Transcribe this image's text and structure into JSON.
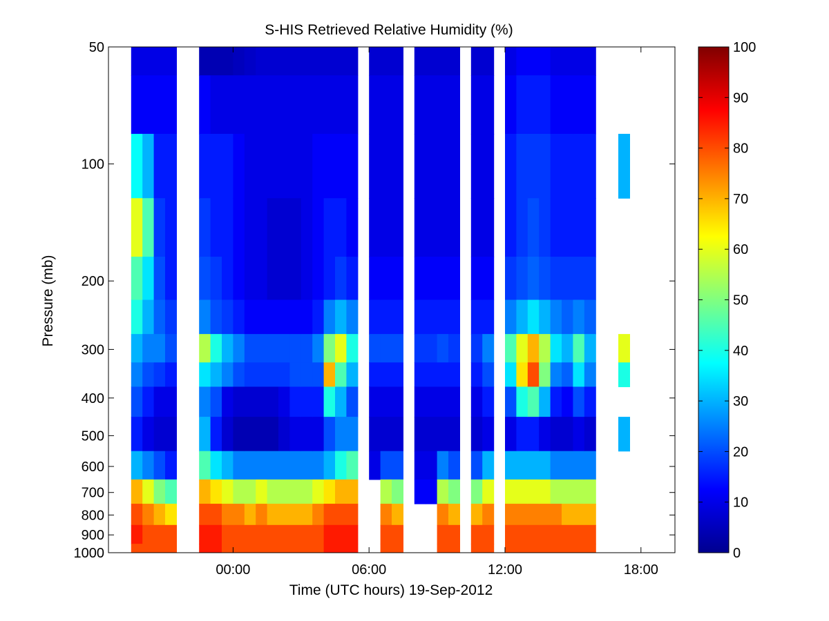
{
  "chart_data": {
    "type": "heatmap",
    "title": "S-HIS Retrieved Relative Humidity (%)",
    "xlabel": "Time (UTC hours) 19-Sep-2012",
    "ylabel": "Pressure (mb)",
    "y_scale": "log",
    "y_reversed": true,
    "ylim": [
      50,
      1000
    ],
    "y_ticks": [
      50,
      100,
      200,
      300,
      400,
      500,
      600,
      700,
      800,
      900,
      1000
    ],
    "y_tick_labels": [
      "50",
      "100",
      "200",
      "300",
      "400",
      "500",
      "600",
      "700",
      "800",
      "900",
      "1000"
    ],
    "xlim": [
      -5.5,
      19.5
    ],
    "x_ticks": [
      0,
      6,
      12,
      18
    ],
    "x_tick_labels": [
      "00:00",
      "06:00",
      "12:00",
      "18:00"
    ],
    "colorbar": {
      "min": 0,
      "max": 100,
      "ticks": [
        0,
        10,
        20,
        30,
        40,
        50,
        60,
        70,
        80,
        90,
        100
      ],
      "tick_labels": [
        "0",
        "10",
        "20",
        "30",
        "40",
        "50",
        "60",
        "70",
        "80",
        "90",
        "100"
      ],
      "colormap": "jet"
    },
    "time_columns": [
      -4.25,
      -3.75,
      -3.25,
      -2.75,
      -2.25,
      -1.75,
      -1.25,
      -0.75,
      -0.25,
      0.25,
      0.75,
      1.25,
      1.75,
      2.25,
      2.75,
      3.25,
      3.75,
      4.25,
      4.75,
      5.25,
      5.75,
      6.25,
      6.75,
      7.25,
      7.75,
      8.25,
      8.75,
      9.25,
      9.75,
      10.25,
      10.75,
      11.25,
      11.75,
      12.25,
      12.75,
      13.25,
      13.75,
      14.25,
      14.75,
      15.25,
      15.75,
      16.25,
      16.75,
      17.25
    ],
    "pressure_levels": [
      50,
      70,
      100,
      150,
      200,
      250,
      300,
      350,
      400,
      500,
      600,
      700,
      800,
      900,
      1000
    ],
    "missing_value": -1,
    "rh": [
      [
        10,
        12,
        38,
        60,
        45,
        40,
        30,
        25,
        20,
        15,
        30,
        70,
        80,
        85,
        80
      ],
      [
        10,
        12,
        30,
        45,
        35,
        30,
        25,
        20,
        15,
        10,
        25,
        60,
        75,
        80,
        80
      ],
      [
        10,
        12,
        15,
        18,
        20,
        22,
        25,
        18,
        10,
        8,
        20,
        50,
        70,
        80,
        80
      ],
      [
        10,
        12,
        15,
        15,
        15,
        18,
        20,
        15,
        10,
        8,
        15,
        45,
        65,
        80,
        80
      ],
      [
        -1,
        -1,
        -1,
        -1,
        -1,
        -1,
        -1,
        -1,
        -1,
        -1,
        -1,
        -1,
        -1,
        -1,
        -1
      ],
      [
        -1,
        -1,
        -1,
        -1,
        -1,
        -1,
        -1,
        -1,
        -1,
        -1,
        -1,
        -1,
        -1,
        -1,
        -1
      ],
      [
        5,
        12,
        15,
        18,
        20,
        25,
        55,
        35,
        25,
        30,
        45,
        70,
        80,
        85,
        85
      ],
      [
        5,
        10,
        15,
        15,
        18,
        20,
        40,
        30,
        20,
        15,
        35,
        65,
        80,
        85,
        85
      ],
      [
        5,
        10,
        15,
        15,
        15,
        18,
        30,
        25,
        10,
        8,
        30,
        60,
        75,
        80,
        80
      ],
      [
        6,
        10,
        12,
        12,
        12,
        15,
        25,
        20,
        8,
        5,
        25,
        55,
        75,
        80,
        80
      ],
      [
        7,
        10,
        10,
        10,
        10,
        12,
        20,
        18,
        8,
        5,
        25,
        55,
        70,
        80,
        80
      ],
      [
        8,
        10,
        10,
        10,
        10,
        12,
        20,
        18,
        8,
        5,
        25,
        60,
        75,
        80,
        80
      ],
      [
        8,
        10,
        10,
        8,
        8,
        12,
        20,
        18,
        8,
        5,
        25,
        55,
        70,
        80,
        80
      ],
      [
        8,
        10,
        10,
        8,
        8,
        12,
        20,
        18,
        10,
        8,
        25,
        55,
        70,
        80,
        80
      ],
      [
        8,
        10,
        10,
        8,
        8,
        12,
        20,
        20,
        15,
        10,
        25,
        55,
        70,
        80,
        80
      ],
      [
        8,
        10,
        10,
        10,
        10,
        12,
        20,
        20,
        15,
        10,
        25,
        55,
        70,
        80,
        80
      ],
      [
        8,
        10,
        12,
        12,
        12,
        15,
        25,
        20,
        15,
        10,
        25,
        60,
        75,
        80,
        80
      ],
      [
        8,
        10,
        12,
        15,
        15,
        25,
        50,
        70,
        40,
        20,
        30,
        65,
        80,
        85,
        85
      ],
      [
        8,
        10,
        12,
        15,
        18,
        30,
        60,
        45,
        30,
        25,
        40,
        70,
        80,
        85,
        85
      ],
      [
        8,
        10,
        12,
        12,
        15,
        25,
        40,
        30,
        20,
        25,
        45,
        70,
        80,
        85,
        85
      ],
      [
        -1,
        -1,
        -1,
        -1,
        -1,
        -1,
        -1,
        -1,
        -1,
        -1,
        -1,
        -1,
        -1,
        -1,
        -1
      ],
      [
        8,
        10,
        10,
        10,
        12,
        15,
        20,
        15,
        10,
        8,
        10,
        -1,
        -1,
        -1,
        -1
      ],
      [
        8,
        10,
        10,
        10,
        12,
        15,
        20,
        15,
        10,
        8,
        20,
        55,
        75,
        80,
        80
      ],
      [
        8,
        10,
        10,
        10,
        12,
        15,
        20,
        15,
        10,
        8,
        20,
        50,
        70,
        80,
        80
      ],
      [
        -1,
        -1,
        -1,
        -1,
        -1,
        -1,
        -1,
        -1,
        -1,
        -1,
        -1,
        -1,
        -1,
        -1,
        -1
      ],
      [
        8,
        10,
        10,
        10,
        12,
        15,
        18,
        15,
        10,
        8,
        10,
        12,
        -1,
        -1,
        -1
      ],
      [
        8,
        10,
        10,
        10,
        12,
        15,
        18,
        15,
        10,
        8,
        10,
        12,
        -1,
        -1,
        -1
      ],
      [
        8,
        10,
        10,
        10,
        12,
        15,
        20,
        15,
        10,
        8,
        25,
        55,
        75,
        80,
        80
      ],
      [
        8,
        10,
        10,
        10,
        12,
        15,
        18,
        15,
        10,
        8,
        20,
        50,
        70,
        80,
        80
      ],
      [
        -1,
        -1,
        -1,
        -1,
        -1,
        -1,
        -1,
        -1,
        -1,
        -1,
        -1,
        -1,
        -1,
        -1,
        -1
      ],
      [
        8,
        10,
        10,
        10,
        12,
        15,
        18,
        15,
        10,
        8,
        20,
        50,
        70,
        80,
        80
      ],
      [
        8,
        10,
        10,
        10,
        12,
        15,
        25,
        20,
        15,
        10,
        30,
        60,
        75,
        80,
        80
      ],
      [
        -1,
        -1,
        -1,
        -1,
        -1,
        -1,
        -1,
        -1,
        -1,
        -1,
        -1,
        -1,
        -1,
        -1,
        -1
      ],
      [
        10,
        12,
        15,
        15,
        18,
        25,
        45,
        35,
        20,
        10,
        30,
        60,
        75,
        80,
        80
      ],
      [
        12,
        15,
        18,
        18,
        20,
        30,
        60,
        65,
        40,
        15,
        30,
        60,
        75,
        80,
        80
      ],
      [
        12,
        15,
        18,
        20,
        22,
        35,
        70,
        80,
        45,
        15,
        30,
        60,
        75,
        80,
        80
      ],
      [
        12,
        15,
        18,
        18,
        20,
        30,
        55,
        50,
        30,
        10,
        30,
        60,
        75,
        80,
        80
      ],
      [
        10,
        12,
        15,
        15,
        18,
        25,
        35,
        25,
        15,
        8,
        25,
        55,
        75,
        80,
        80
      ],
      [
        10,
        12,
        15,
        15,
        18,
        22,
        30,
        22,
        12,
        8,
        25,
        55,
        70,
        80,
        80
      ],
      [
        10,
        12,
        15,
        15,
        18,
        25,
        45,
        35,
        20,
        10,
        25,
        55,
        70,
        80,
        80
      ],
      [
        10,
        12,
        15,
        15,
        18,
        22,
        30,
        25,
        15,
        8,
        25,
        55,
        70,
        80,
        80
      ],
      [
        -1,
        -1,
        -1,
        -1,
        -1,
        -1,
        -1,
        -1,
        -1,
        -1,
        -1,
        -1,
        -1,
        -1,
        -1
      ],
      [
        -1,
        -1,
        -1,
        -1,
        -1,
        -1,
        -1,
        -1,
        -1,
        -1,
        -1,
        -1,
        -1,
        -1,
        -1
      ],
      [
        -1,
        -1,
        30,
        -1,
        -1,
        -1,
        60,
        40,
        -1,
        30,
        -1,
        -1,
        -1,
        -1,
        -1
      ]
    ]
  }
}
